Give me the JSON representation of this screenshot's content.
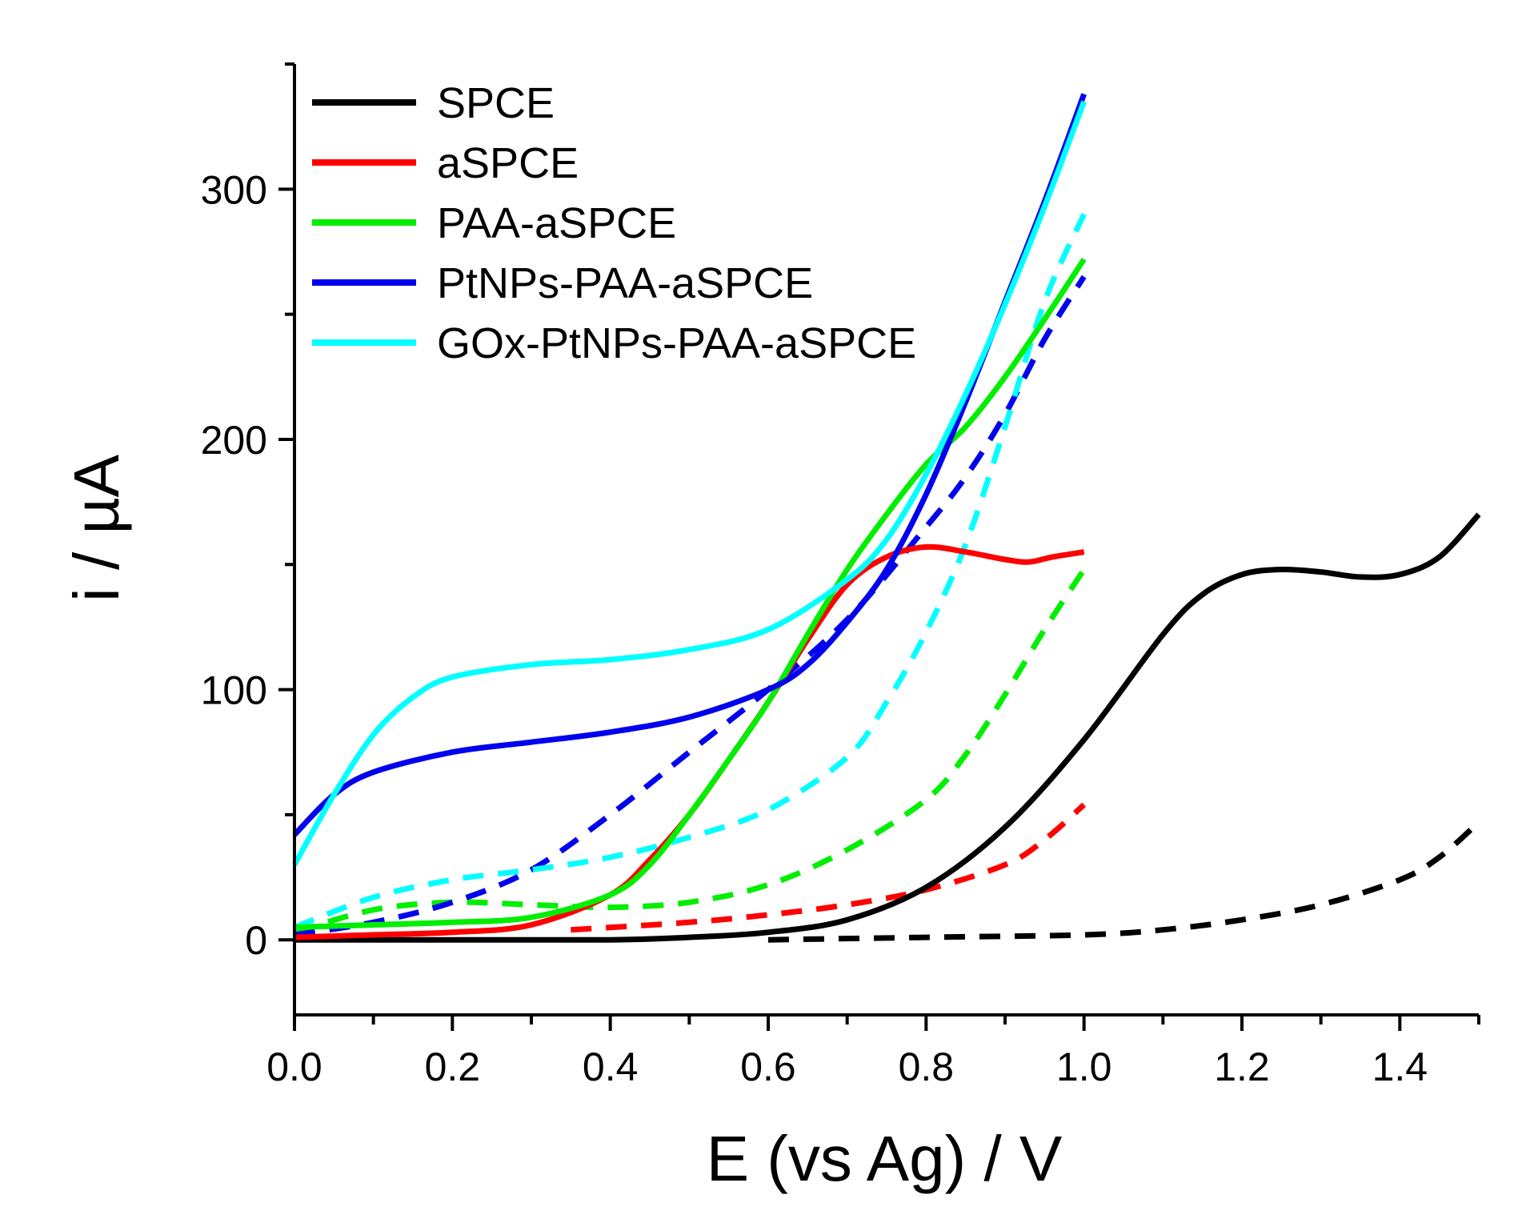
{
  "chart_data": {
    "type": "line",
    "title": "",
    "xlabel": "E (vs Ag) / V",
    "ylabel": "i / µA",
    "xlim": [
      0.0,
      1.5
    ],
    "ylim": [
      -30,
      350
    ],
    "x_ticks": [
      0.0,
      0.2,
      0.4,
      0.6,
      0.8,
      1.0,
      1.2,
      1.4
    ],
    "x_tick_labels": [
      "0.0",
      "0.2",
      "0.4",
      "0.6",
      "0.8",
      "1.0",
      "1.2",
      "1.4"
    ],
    "y_ticks": [
      0,
      100,
      200,
      300
    ],
    "y_tick_labels": [
      "0",
      "100",
      "200",
      "300"
    ],
    "legend_position": "top-left",
    "series": [
      {
        "name": "SPCE",
        "color": "#000000",
        "style": "solid",
        "x": [
          0.0,
          0.2,
          0.4,
          0.5,
          0.6,
          0.7,
          0.8,
          0.9,
          1.0,
          1.1,
          1.15,
          1.2,
          1.25,
          1.3,
          1.35,
          1.4,
          1.45,
          1.5
        ],
        "y": [
          0,
          0,
          0,
          1,
          3,
          8,
          21,
          45,
          80,
          122,
          138,
          146,
          148,
          147,
          145,
          146,
          153,
          170
        ]
      },
      {
        "name": "SPCE (dashed)",
        "color": "#000000",
        "style": "dashed",
        "x": [
          0.6,
          0.8,
          1.0,
          1.1,
          1.2,
          1.3,
          1.4,
          1.45,
          1.5
        ],
        "y": [
          0,
          1,
          2,
          4,
          8,
          14,
          24,
          33,
          47
        ]
      },
      {
        "name": "aSPCE",
        "color": "#ff0000",
        "style": "solid",
        "x": [
          0.0,
          0.1,
          0.2,
          0.3,
          0.4,
          0.45,
          0.5,
          0.55,
          0.6,
          0.65,
          0.7,
          0.75,
          0.8,
          0.85,
          0.9,
          0.93,
          0.96,
          1.0
        ],
        "y": [
          1,
          2,
          3,
          6,
          18,
          32,
          50,
          72,
          95,
          120,
          142,
          153,
          157,
          155,
          152,
          151,
          153,
          155
        ]
      },
      {
        "name": "aSPCE (dashed)",
        "color": "#ff0000",
        "style": "dashed",
        "x": [
          0.35,
          0.5,
          0.6,
          0.7,
          0.8,
          0.9,
          0.95,
          1.0
        ],
        "y": [
          4,
          7,
          10,
          14,
          20,
          30,
          40,
          54
        ]
      },
      {
        "name": "PAA-aSPCE",
        "color": "#00ee00",
        "style": "solid",
        "x": [
          0.0,
          0.1,
          0.2,
          0.3,
          0.4,
          0.45,
          0.5,
          0.55,
          0.6,
          0.65,
          0.7,
          0.75,
          0.8,
          0.85,
          0.9,
          0.95,
          1.0
        ],
        "y": [
          5,
          6,
          7,
          9,
          18,
          30,
          50,
          72,
          95,
          122,
          148,
          170,
          190,
          205,
          225,
          248,
          272
        ]
      },
      {
        "name": "PAA-aSPCE (dashed)",
        "color": "#00ee00",
        "style": "dashed",
        "x": [
          0.0,
          0.1,
          0.2,
          0.3,
          0.4,
          0.5,
          0.6,
          0.7,
          0.8,
          0.85,
          0.9,
          0.95,
          1.0
        ],
        "y": [
          3,
          12,
          15,
          14,
          13,
          15,
          22,
          36,
          56,
          74,
          98,
          124,
          148
        ]
      },
      {
        "name": "PtNPs-PAA-aSPCE",
        "color": "#0000ee",
        "style": "solid",
        "x": [
          0.0,
          0.05,
          0.1,
          0.2,
          0.3,
          0.4,
          0.5,
          0.6,
          0.65,
          0.7,
          0.75,
          0.8,
          0.85,
          0.9,
          0.95,
          1.0
        ],
        "y": [
          42,
          58,
          67,
          75,
          79,
          83,
          89,
          100,
          110,
          127,
          148,
          178,
          215,
          255,
          295,
          338
        ]
      },
      {
        "name": "PtNPs-PAA-aSPCE (dashed)",
        "color": "#0000ee",
        "style": "dashed",
        "x": [
          0.0,
          0.1,
          0.2,
          0.3,
          0.4,
          0.5,
          0.6,
          0.7,
          0.8,
          0.85,
          0.9,
          0.95,
          1.0
        ],
        "y": [
          2,
          7,
          15,
          28,
          50,
          75,
          100,
          128,
          165,
          185,
          210,
          240,
          265
        ]
      },
      {
        "name": "GOx-PtNPs-PAA-aSPCE",
        "color": "#00ffff",
        "style": "solid",
        "x": [
          0.0,
          0.05,
          0.1,
          0.15,
          0.2,
          0.3,
          0.4,
          0.5,
          0.6,
          0.7,
          0.75,
          0.8,
          0.85,
          0.9,
          0.95,
          1.0
        ],
        "y": [
          30,
          58,
          82,
          97,
          105,
          110,
          112,
          116,
          124,
          144,
          160,
          186,
          218,
          254,
          293,
          335
        ]
      },
      {
        "name": "GOx-PtNPs-PAA-aSPCE (dashed)",
        "color": "#00ffff",
        "style": "dashed",
        "x": [
          0.0,
          0.1,
          0.2,
          0.3,
          0.4,
          0.5,
          0.6,
          0.7,
          0.75,
          0.8,
          0.85,
          0.9,
          0.95,
          1.0
        ],
        "y": [
          5,
          17,
          24,
          28,
          33,
          41,
          52,
          73,
          95,
          123,
          158,
          205,
          255,
          290
        ]
      }
    ],
    "legend": [
      {
        "label": "SPCE",
        "color": "#000000"
      },
      {
        "label": "aSPCE",
        "color": "#ff0000"
      },
      {
        "label": "PAA-aSPCE",
        "color": "#00ee00"
      },
      {
        "label": "PtNPs-PAA-aSPCE",
        "color": "#0000ee"
      },
      {
        "label": "GOx-PtNPs-PAA-aSPCE",
        "color": "#00ffff"
      }
    ]
  }
}
